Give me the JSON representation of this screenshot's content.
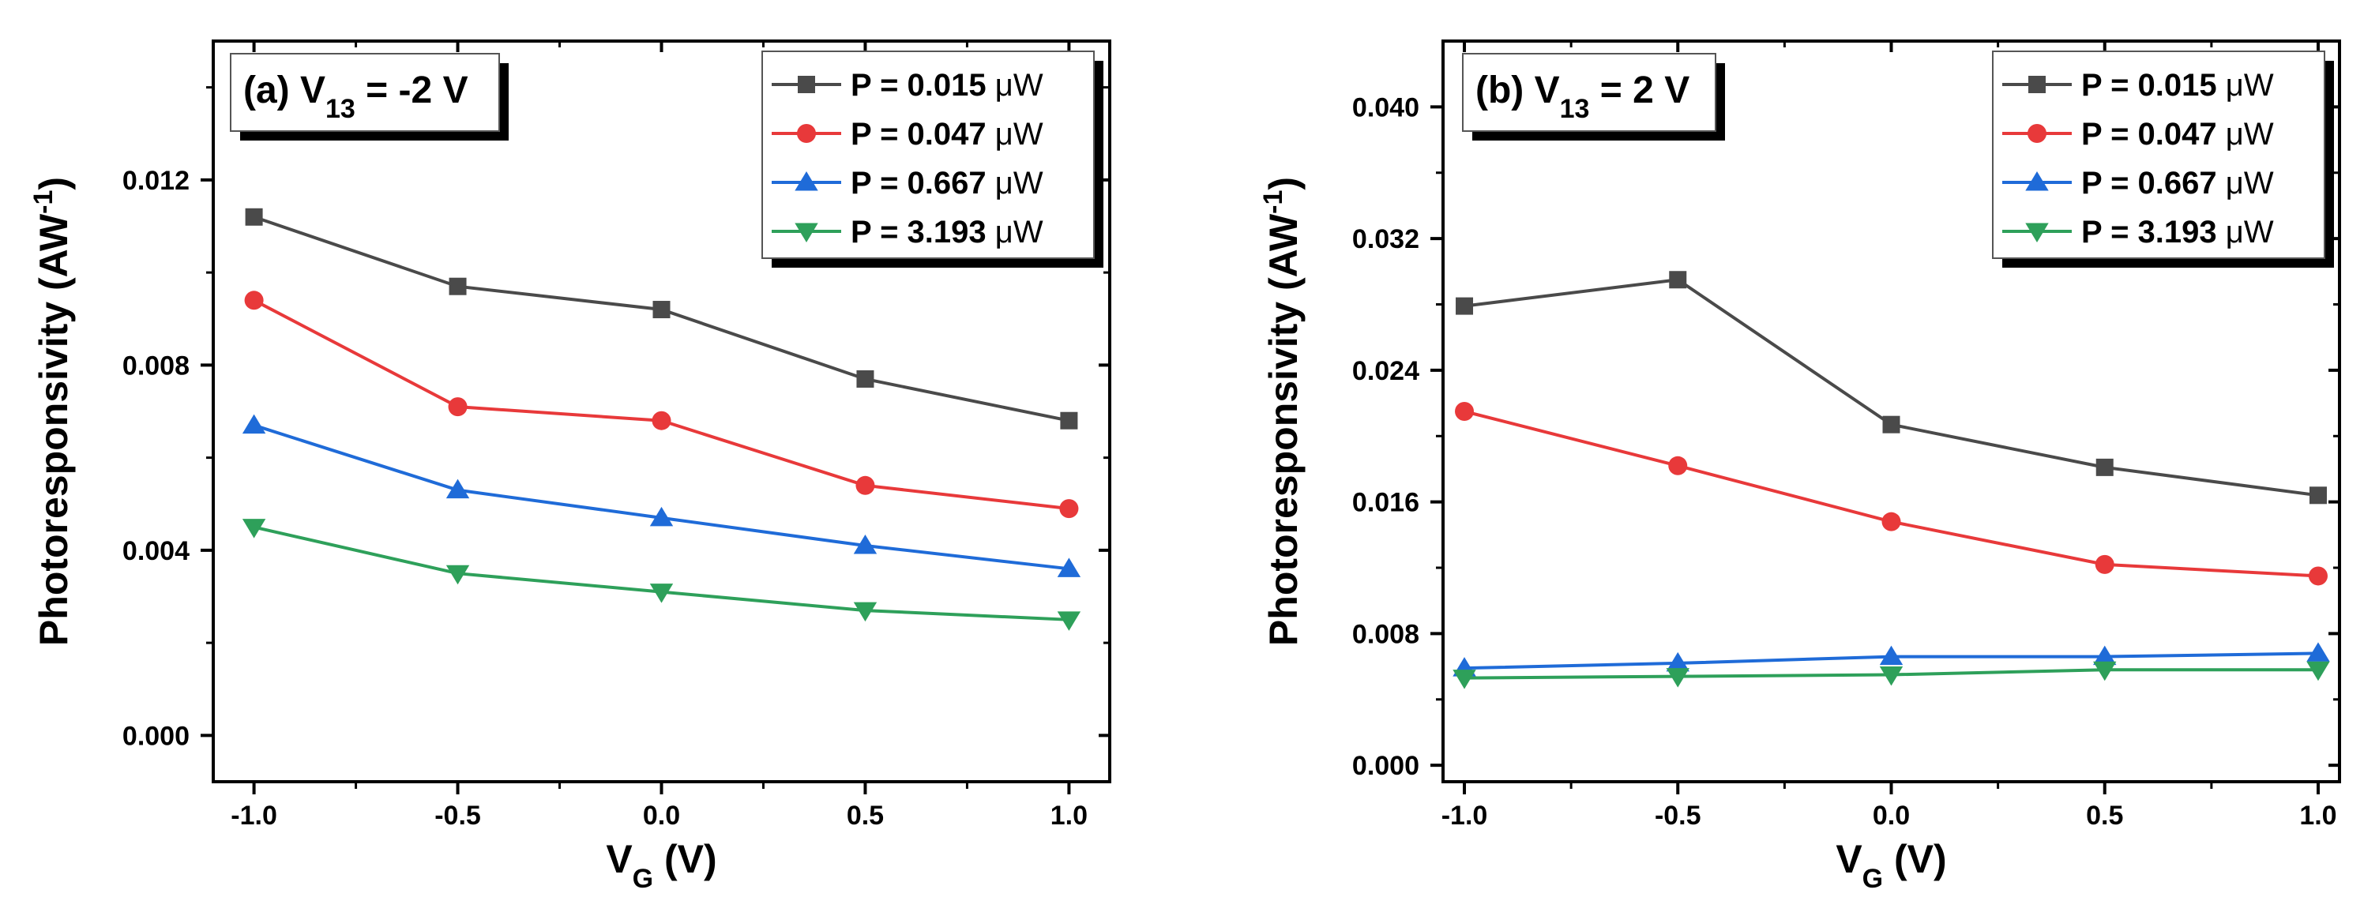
{
  "chart_data": [
    {
      "type": "line",
      "panel_label": "(a)",
      "title_var": "V",
      "title_sub": "13",
      "title_rest": " = -2 V",
      "xlabel": "V",
      "xlabel_sub": "G",
      "xlabel_unit": " (V)",
      "ylabel": "Photoresponsivity (AW",
      "ylabel_sup": "-1",
      "ylabel_close": ")",
      "xlim": [
        -1.1,
        1.1
      ],
      "ylim": [
        -0.001,
        0.015
      ],
      "xticks": [
        -1.0,
        -0.5,
        0.0,
        0.5,
        1.0
      ],
      "xtick_labels": [
        "-1.0",
        "-0.5",
        "0.0",
        "0.5",
        "1.0"
      ],
      "yticks": [
        0.0,
        0.004,
        0.008,
        0.012
      ],
      "ytick_labels": [
        "0.000",
        "0.004",
        "0.008",
        "0.012"
      ],
      "x": [
        -1.0,
        -0.5,
        0.0,
        0.5,
        1.0
      ],
      "legend_position": "top-right",
      "series": [
        {
          "name": "P = 0.015 μW",
          "label_prefix": "P = 0.015 ",
          "label_unit": "μW",
          "color": "#4a4a4a",
          "marker": "square",
          "values": [
            0.0112,
            0.0097,
            0.0092,
            0.0077,
            0.0068
          ]
        },
        {
          "name": "P = 0.047 μW",
          "label_prefix": "P = 0.047 ",
          "label_unit": "μW",
          "color": "#e8393a",
          "marker": "circle",
          "values": [
            0.0094,
            0.0071,
            0.0068,
            0.0054,
            0.0049
          ]
        },
        {
          "name": "P = 0.667 μW",
          "label_prefix": "P = 0.667 ",
          "label_unit": "μW",
          "color": "#1f6bd8",
          "marker": "triangle-up",
          "values": [
            0.0067,
            0.0053,
            0.0047,
            0.0041,
            0.0036
          ]
        },
        {
          "name": "P = 3.193 μW",
          "label_prefix": "P = 3.193 ",
          "label_unit": "μW",
          "color": "#2ea05a",
          "marker": "triangle-down",
          "values": [
            0.0045,
            0.0035,
            0.0031,
            0.0027,
            0.0025
          ]
        }
      ]
    },
    {
      "type": "line",
      "panel_label": "(b)",
      "title_var": "V",
      "title_sub": "13",
      "title_rest": " = 2 V",
      "xlabel": "V",
      "xlabel_sub": "G",
      "xlabel_unit": " (V)",
      "ylabel": "Photoresponsivity (AW",
      "ylabel_sup": "-1",
      "ylabel_close": ")",
      "xlim": [
        -1.05,
        1.05
      ],
      "ylim": [
        -0.001,
        0.044
      ],
      "xticks": [
        -1.0,
        -0.5,
        0.0,
        0.5,
        1.0
      ],
      "xtick_labels": [
        "-1.0",
        "-0.5",
        "0.0",
        "0.5",
        "1.0"
      ],
      "yticks": [
        0.0,
        0.008,
        0.016,
        0.024,
        0.032,
        0.04
      ],
      "ytick_labels": [
        "0.000",
        "0.008",
        "0.016",
        "0.024",
        "0.032",
        "0.040"
      ],
      "x": [
        -1.0,
        -0.5,
        0.0,
        0.5,
        1.0
      ],
      "legend_position": "top-right",
      "series": [
        {
          "name": "P = 0.015 μW",
          "label_prefix": "P = 0.015 ",
          "label_unit": "μW",
          "color": "#4a4a4a",
          "marker": "square",
          "values": [
            0.0279,
            0.0295,
            0.0207,
            0.0181,
            0.0164
          ]
        },
        {
          "name": "P = 0.047 μW",
          "label_prefix": "P = 0.047 ",
          "label_unit": "μW",
          "color": "#e8393a",
          "marker": "circle",
          "values": [
            0.0215,
            0.0182,
            0.0148,
            0.0122,
            0.0115
          ]
        },
        {
          "name": "P = 0.667 μW",
          "label_prefix": "P = 0.667 ",
          "label_unit": "μW",
          "color": "#1f6bd8",
          "marker": "triangle-up",
          "values": [
            0.0059,
            0.0062,
            0.0066,
            0.0066,
            0.0068
          ]
        },
        {
          "name": "P = 3.193 μW",
          "label_prefix": "P = 3.193 ",
          "label_unit": "μW",
          "color": "#2ea05a",
          "marker": "triangle-down",
          "values": [
            0.0053,
            0.0054,
            0.0055,
            0.0058,
            0.0058
          ]
        }
      ]
    }
  ]
}
